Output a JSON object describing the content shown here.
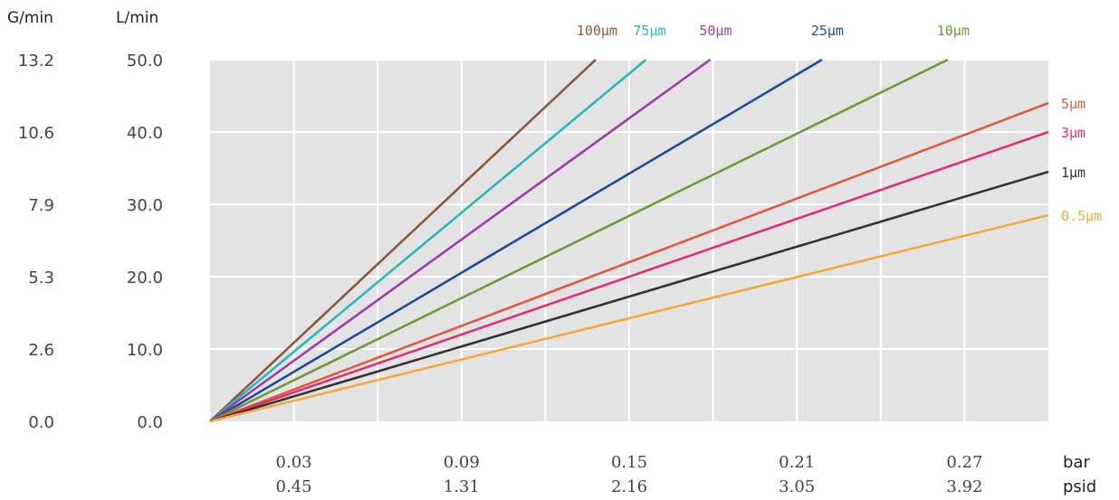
{
  "chart_data": {
    "type": "line",
    "y_units": [
      "G/min",
      "L/min"
    ],
    "x_units": [
      "bar",
      "psid"
    ],
    "y_ticks": [
      {
        "g": "0.0",
        "l": "0.0",
        "v": 0
      },
      {
        "g": "2.6",
        "l": "10.0",
        "v": 10
      },
      {
        "g": "5.3",
        "l": "20.0",
        "v": 20
      },
      {
        "g": "7.9",
        "l": "30.0",
        "v": 30
      },
      {
        "g": "10.6",
        "l": "40.0",
        "v": 40
      },
      {
        "g": "13.2",
        "l": "50.0",
        "v": 50
      }
    ],
    "x_ticks": [
      {
        "bar": "0.03",
        "psid": "0.45",
        "v": 0.03
      },
      {
        "bar": "0.09",
        "psid": "1.31",
        "v": 0.09
      },
      {
        "bar": "0.15",
        "psid": "2.16",
        "v": 0.15
      },
      {
        "bar": "0.21",
        "psid": "3.05",
        "v": 0.21
      },
      {
        "bar": "0.27",
        "psid": "3.92",
        "v": 0.27
      }
    ],
    "xlim": [
      0,
      0.3
    ],
    "ylim": [
      0,
      50
    ],
    "grid": true,
    "series": [
      {
        "name": "100μm",
        "color": "#8B5A3C",
        "x": [
          0,
          0.138
        ],
        "y": [
          0,
          50
        ]
      },
      {
        "name": "75μm",
        "color": "#2BB8B8",
        "x": [
          0,
          0.156
        ],
        "y": [
          0,
          50
        ]
      },
      {
        "name": "50μm",
        "color": "#9B3FA8",
        "x": [
          0,
          0.179
        ],
        "y": [
          0,
          50
        ]
      },
      {
        "name": "25μm",
        "color": "#1E4C9A",
        "x": [
          0,
          0.219
        ],
        "y": [
          0,
          50
        ]
      },
      {
        "name": "10μm",
        "color": "#6E9A3A",
        "x": [
          0,
          0.264
        ],
        "y": [
          0,
          50
        ]
      },
      {
        "name": "5μm",
        "color": "#E05A3C",
        "x": [
          0,
          0.3
        ],
        "y": [
          0,
          44
        ]
      },
      {
        "name": "3μm",
        "color": "#E02F78",
        "x": [
          0,
          0.3
        ],
        "y": [
          0,
          40
        ]
      },
      {
        "name": "1μm",
        "color": "#333333",
        "x": [
          0,
          0.3
        ],
        "y": [
          0,
          34.5
        ]
      },
      {
        "name": "0.5μm",
        "color": "#F2A93B",
        "x": [
          0,
          0.3
        ],
        "y": [
          0,
          28.5
        ]
      }
    ]
  }
}
